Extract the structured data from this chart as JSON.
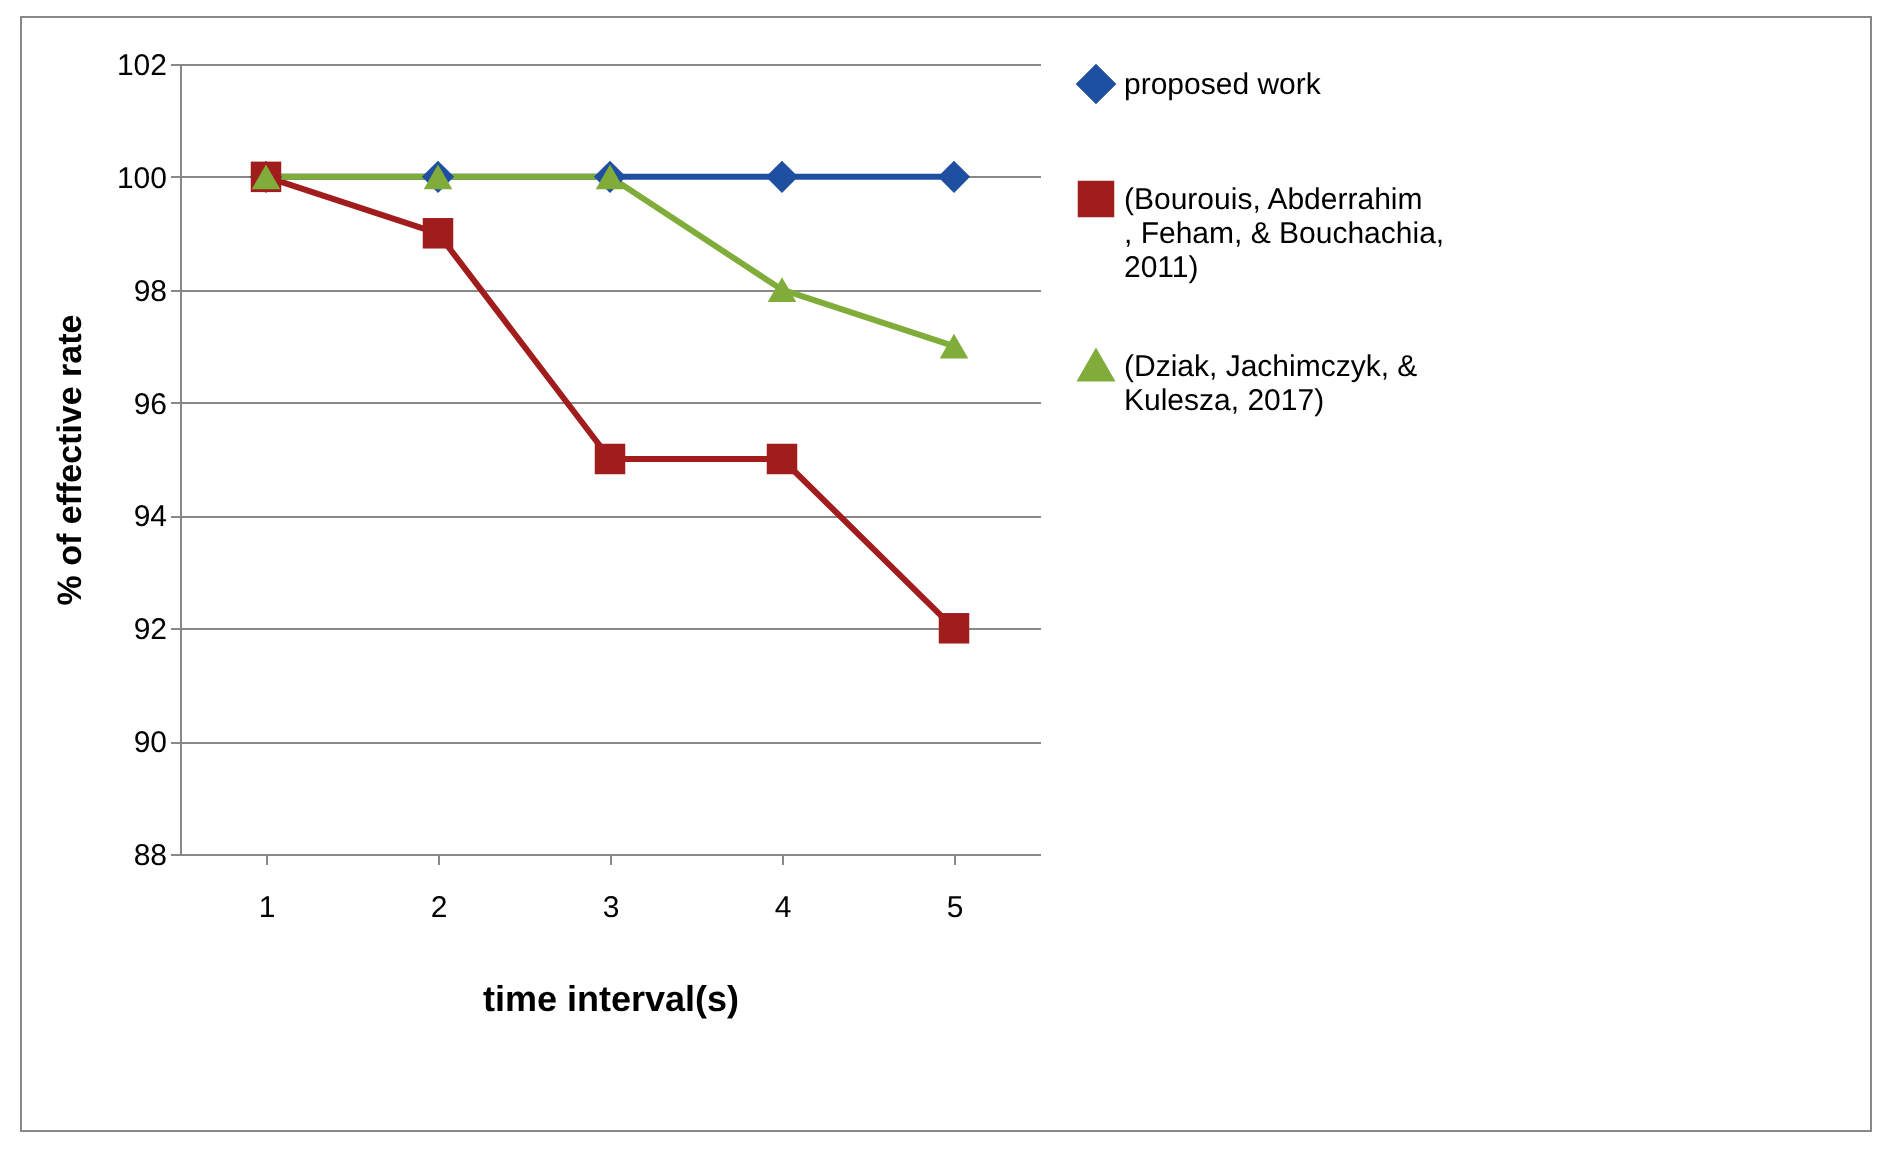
{
  "chart_data": {
    "type": "line",
    "xlabel": "time interval(s)",
    "ylabel": "% of effective rate",
    "categories": [
      "1",
      "2",
      "3",
      "4",
      "5"
    ],
    "series": [
      {
        "name": "proposed work",
        "color": "#1f4fa0",
        "marker": "diamond",
        "values": [
          100,
          100,
          100,
          100,
          100
        ]
      },
      {
        "name": "(Bourouis, Abderrahim , Feham, & Bouchachia, 2011)",
        "color": "#a11d1d",
        "marker": "square",
        "values": [
          100,
          99,
          95,
          95,
          92
        ]
      },
      {
        "name": "(Dziak, Jachimczyk, & Kulesza, 2017)",
        "color": "#80ad3a",
        "marker": "triangle",
        "values": [
          100,
          100,
          100,
          98,
          97
        ]
      }
    ],
    "ylim": [
      88,
      102
    ],
    "yticks": [
      88,
      90,
      92,
      94,
      96,
      98,
      100,
      102
    ],
    "grid": "y",
    "legend": "right"
  }
}
